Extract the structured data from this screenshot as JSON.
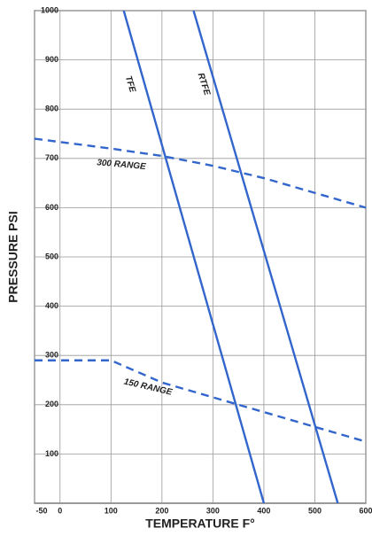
{
  "chart_data": {
    "type": "line",
    "xlabel": "TEMPERATURE F°",
    "ylabel": "PRESSURE PSI",
    "xlim": [
      -50,
      600
    ],
    "ylim": [
      0,
      1000
    ],
    "xticks": [
      -50,
      0,
      100,
      200,
      300,
      400,
      500,
      600
    ],
    "yticks": [
      100,
      200,
      300,
      400,
      500,
      600,
      700,
      800,
      900,
      1000
    ],
    "grid": true,
    "series": [
      {
        "name": "TFE",
        "color": "#3366cc",
        "style": "solid",
        "x": [
          125,
          400
        ],
        "values": [
          1000,
          0
        ]
      },
      {
        "name": "RTFE",
        "color": "#3366cc",
        "style": "solid",
        "x": [
          262,
          545
        ],
        "values": [
          1000,
          0
        ]
      },
      {
        "name": "300 RANGE",
        "color": "#3366cc",
        "style": "dashed",
        "x": [
          -50,
          100,
          200,
          300,
          400,
          500,
          600
        ],
        "values": [
          740,
          720,
          705,
          685,
          660,
          630,
          600
        ]
      },
      {
        "name": "150 RANGE",
        "color": "#3366cc",
        "style": "dashed",
        "x": [
          -50,
          100,
          200,
          300,
          400,
          500,
          600
        ],
        "values": [
          290,
          290,
          245,
          215,
          185,
          155,
          125
        ]
      }
    ]
  }
}
